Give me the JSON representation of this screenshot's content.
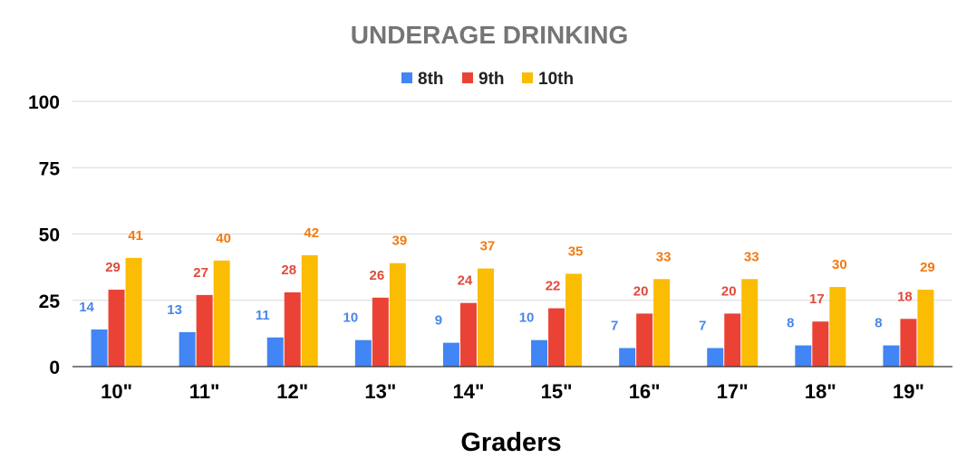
{
  "chart_data": {
    "type": "bar",
    "title": "UNDERAGE DRINKING",
    "xlabel": "Graders",
    "ylabel": "",
    "ylim": [
      0,
      100
    ],
    "yticks": [
      0,
      25,
      50,
      75,
      100
    ],
    "grid": true,
    "legend_position": "top",
    "categories": [
      "10\"",
      "11\"",
      "12\"",
      "13\"",
      "14\"",
      "15\"",
      "16\"",
      "17\"",
      "18\"",
      "19\""
    ],
    "series": [
      {
        "name": "8th",
        "color": "#4285f4",
        "label_color": "#4a86e8",
        "values": [
          14,
          13,
          11,
          10,
          9,
          10,
          7,
          7,
          8,
          8
        ]
      },
      {
        "name": "9th",
        "color": "#ea4335",
        "label_color": "#e0493b",
        "values": [
          29,
          27,
          28,
          26,
          24,
          22,
          20,
          20,
          17,
          18
        ]
      },
      {
        "name": "10th",
        "color": "#fbbc04",
        "label_color": "#f4790f",
        "values": [
          41,
          40,
          42,
          39,
          37,
          35,
          33,
          33,
          30,
          29
        ]
      }
    ]
  }
}
